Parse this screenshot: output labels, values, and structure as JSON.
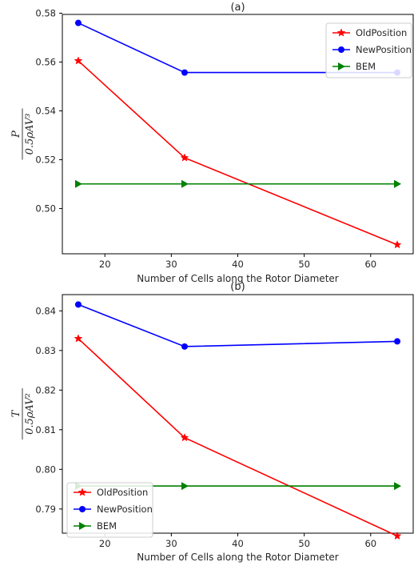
{
  "chart_data": [
    {
      "type": "line",
      "title": "(a)",
      "xlabel": "Number of Cells along the Rotor Diameter",
      "ylabel": {
        "numerator": "P",
        "denominator": "0.5ρAV³"
      },
      "x": [
        16,
        32,
        64
      ],
      "xlim": [
        13.6,
        66.4
      ],
      "ylim": [
        0.4815,
        0.5795
      ],
      "xticks": [
        20,
        30,
        40,
        50,
        60
      ],
      "yticks": [
        0.5,
        0.52,
        0.54,
        0.56,
        0.58
      ],
      "ytick_labels": [
        "0.50",
        "0.52",
        "0.54",
        "0.56",
        "0.58"
      ],
      "grid": false,
      "legend_position": "upper right",
      "series": [
        {
          "name": "OldPosition",
          "values": [
            0.5605,
            0.5208,
            0.4852
          ],
          "color": "#ff0000",
          "marker": "star"
        },
        {
          "name": "NewPosition",
          "values": [
            0.576,
            0.5557,
            0.5557
          ],
          "color": "#0000ff",
          "marker": "circle"
        },
        {
          "name": "BEM",
          "values": [
            0.5101,
            0.5101,
            0.5101
          ],
          "color": "#008000",
          "marker": "triangle-right"
        }
      ]
    },
    {
      "type": "line",
      "title": "(b)",
      "xlabel": "Number of Cells along the Rotor Diameter",
      "ylabel": {
        "numerator": "T",
        "denominator": "0.5ρAV²"
      },
      "x": [
        16,
        32,
        64
      ],
      "xlim": [
        13.6,
        66.4
      ],
      "ylim": [
        0.7839,
        0.8441
      ],
      "xticks": [
        20,
        30,
        40,
        50,
        60
      ],
      "yticks": [
        0.79,
        0.8,
        0.81,
        0.82,
        0.83,
        0.84
      ],
      "ytick_labels": [
        "0.79",
        "0.80",
        "0.81",
        "0.82",
        "0.83",
        "0.84"
      ],
      "grid": false,
      "legend_position": "lower left",
      "series": [
        {
          "name": "OldPosition",
          "values": [
            0.833,
            0.808,
            0.7832
          ],
          "color": "#ff0000",
          "marker": "star"
        },
        {
          "name": "NewPosition",
          "values": [
            0.8416,
            0.831,
            0.8323
          ],
          "color": "#0000ff",
          "marker": "circle"
        },
        {
          "name": "BEM",
          "values": [
            0.7958,
            0.7958,
            0.7958
          ],
          "color": "#008000",
          "marker": "triangle-right"
        }
      ]
    }
  ]
}
